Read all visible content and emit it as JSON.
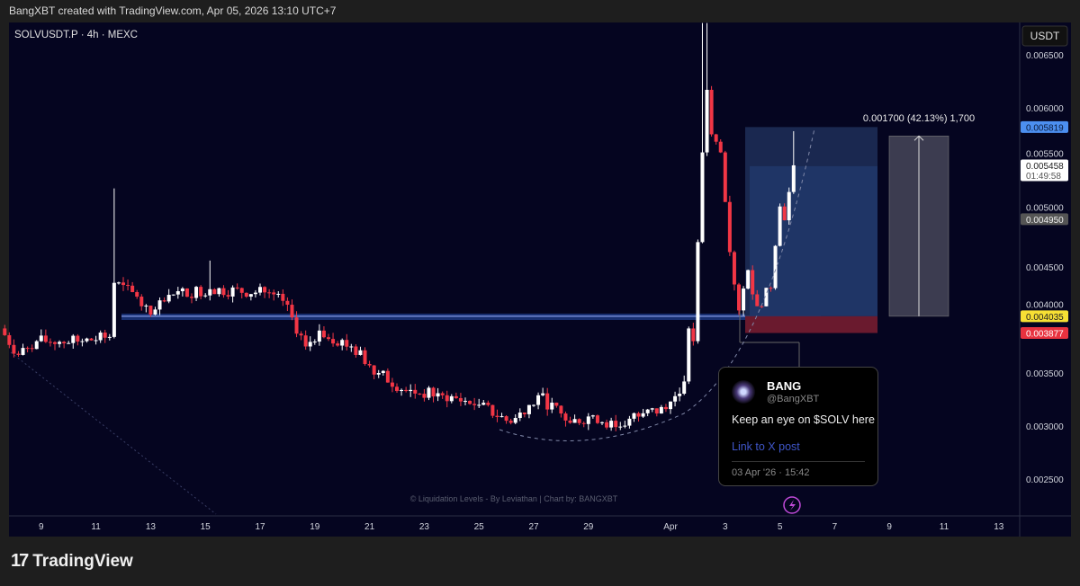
{
  "header": {
    "text": "BangXBT created with TradingView.com, Apr 05, 2026 13:10 UTC+7"
  },
  "chart_data": {
    "type": "candlestick",
    "symbol_label": "SOLVUSDT.P · 4h · MEXC",
    "currency_label": "USDT",
    "ylim": [
      0.00225,
      0.00672
    ],
    "y_ticks": [
      "0.006500",
      "0.006000",
      "0.005500",
      "0.005000",
      "0.004500",
      "0.004000",
      "0.003500",
      "0.003000",
      "0.002500"
    ],
    "x_ticks": [
      {
        "label": "9",
        "date": "2026-03-09T00:00"
      },
      {
        "label": "11",
        "date": "2026-03-11T00:00"
      },
      {
        "label": "13",
        "date": "2026-03-13T00:00"
      },
      {
        "label": "15",
        "date": "2026-03-15T00:00"
      },
      {
        "label": "17",
        "date": "2026-03-17T00:00"
      },
      {
        "label": "19",
        "date": "2026-03-19T00:00"
      },
      {
        "label": "21",
        "date": "2026-03-21T00:00"
      },
      {
        "label": "23",
        "date": "2026-03-23T00:00"
      },
      {
        "label": "25",
        "date": "2026-03-25T00:00"
      },
      {
        "label": "27",
        "date": "2026-03-27T00:00"
      },
      {
        "label": "29",
        "date": "2026-03-29T00:00"
      },
      {
        "label": "Apr",
        "date": "2026-04-01T00:00"
      },
      {
        "label": "3",
        "date": "2026-04-03T00:00"
      },
      {
        "label": "5",
        "date": "2026-04-05T00:00"
      },
      {
        "label": "7",
        "date": "2026-04-07T00:00"
      },
      {
        "label": "9",
        "date": "2026-04-09T00:00"
      },
      {
        "label": "11",
        "date": "2026-04-11T00:00"
      },
      {
        "label": "13",
        "date": "2026-04-13T00:00"
      }
    ],
    "price_path": [
      {
        "date": "2026-03-07T12:00",
        "close": 0.00392
      },
      {
        "date": "2026-03-08T04:00",
        "close": 0.00367
      },
      {
        "date": "2026-03-08T20:00",
        "close": 0.0038
      },
      {
        "date": "2026-03-10T12:00",
        "close": 0.0038
      },
      {
        "date": "2026-03-11T12:00",
        "close": 0.00384
      },
      {
        "date": "2026-03-11T16:00",
        "close": 0.00435,
        "high": 0.00524
      },
      {
        "date": "2026-03-12T12:00",
        "close": 0.00422
      },
      {
        "date": "2026-03-13T00:00",
        "close": 0.00405
      },
      {
        "date": "2026-03-13T20:00",
        "close": 0.00424
      },
      {
        "date": "2026-03-15T04:00",
        "close": 0.00429,
        "high": 0.00456
      },
      {
        "date": "2026-03-17T04:00",
        "close": 0.00426
      },
      {
        "date": "2026-03-17T20:00",
        "close": 0.00418
      },
      {
        "date": "2026-03-18T16:00",
        "close": 0.00375
      },
      {
        "date": "2026-03-19T04:00",
        "close": 0.0039
      },
      {
        "date": "2026-03-20T08:00",
        "close": 0.00375
      },
      {
        "date": "2026-03-21T08:00",
        "close": 0.0035
      },
      {
        "date": "2026-03-22T08:00",
        "close": 0.00333
      },
      {
        "date": "2026-03-23T16:00",
        "close": 0.00329
      },
      {
        "date": "2026-03-25T00:00",
        "close": 0.0032
      },
      {
        "date": "2026-03-26T04:00",
        "close": 0.00303
      },
      {
        "date": "2026-03-27T04:00",
        "close": 0.00329
      },
      {
        "date": "2026-03-28T08:00",
        "close": 0.00303
      },
      {
        "date": "2026-03-29T04:00",
        "close": 0.0031
      },
      {
        "date": "2026-03-30T00:00",
        "close": 0.00299
      },
      {
        "date": "2026-03-31T00:00",
        "close": 0.00312
      },
      {
        "date": "2026-03-31T20:00",
        "close": 0.00316
      },
      {
        "date": "2026-04-01T12:00",
        "close": 0.00342
      },
      {
        "date": "2026-04-01T16:00",
        "close": 0.00392
      },
      {
        "date": "2026-04-01T20:00",
        "close": 0.0038
      },
      {
        "date": "2026-04-02T04:00",
        "close": 0.00558,
        "high": 0.0068
      },
      {
        "date": "2026-04-02T08:00",
        "close": 0.00617,
        "high": 0.0068
      },
      {
        "date": "2026-04-02T12:00",
        "close": 0.00575
      },
      {
        "date": "2026-04-02T20:00",
        "close": 0.00558
      },
      {
        "date": "2026-04-03T04:00",
        "close": 0.00464
      },
      {
        "date": "2026-04-03T12:00",
        "close": 0.00409
      },
      {
        "date": "2026-04-03T20:00",
        "close": 0.00447
      },
      {
        "date": "2026-04-04T04:00",
        "close": 0.00413
      },
      {
        "date": "2026-04-04T16:00",
        "close": 0.0043
      },
      {
        "date": "2026-04-05T00:00",
        "close": 0.00507
      },
      {
        "date": "2026-04-05T04:00",
        "close": 0.00494
      },
      {
        "date": "2026-04-05T12:00",
        "close": 0.005458,
        "high": 0.00578
      }
    ],
    "price_labels": [
      {
        "value": "0.005819",
        "color": "#4c8ff0",
        "text_color": "#0b1a3a"
      },
      {
        "value": "0.005458",
        "sub": "01:49:58",
        "color": "#ffffff",
        "text_color": "#222222"
      },
      {
        "value": "0.004950",
        "color": "#555555",
        "text_color": "#eeeeee"
      },
      {
        "value": "0.004035",
        "color": "#f7e034",
        "text_color": "#222222"
      },
      {
        "value": "0.003877",
        "color": "#e8323f",
        "text_color": "#ffffff"
      }
    ],
    "position": {
      "entry": 0.004035,
      "stop": 0.003877,
      "target": 0.005819,
      "inner_level": 0.00545
    },
    "measure": {
      "label": "0.001700 (42.13%) 1,700",
      "from": 0.004035,
      "to": 0.005735
    },
    "support_zone": [
      0.004,
      0.00406
    ],
    "colors": {
      "up": "#ffffff",
      "down": "#f23645",
      "background": "#050520"
    }
  },
  "watermark": "© Liquidation Levels - By Leviathan | Chart by: BANGXBT",
  "tweet": {
    "name": "BANG",
    "handle": "@BangXBT",
    "text": "Keep an eye on $SOLV here",
    "link": "Link to X post",
    "date": "03 Apr '26 · 15:42"
  },
  "footer": {
    "brand": "TradingView",
    "logo": "17"
  },
  "icons": {
    "lightning": "lightning-icon"
  }
}
